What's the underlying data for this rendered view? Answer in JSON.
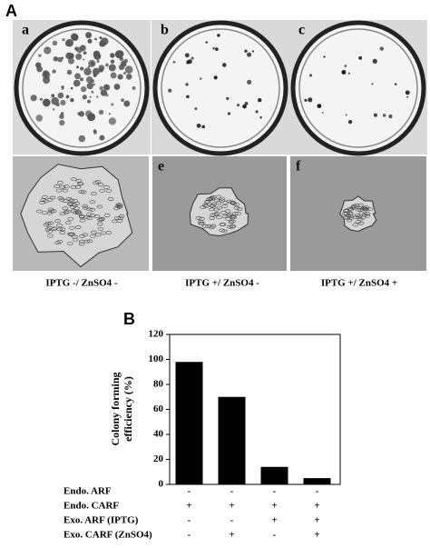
{
  "panel_a": {
    "label": "A",
    "dishes": [
      "a",
      "b",
      "c"
    ],
    "micrographs": [
      "e",
      "f"
    ],
    "captions": [
      "IPTG -/ ZnSO4 -",
      "IPTG +/ ZnSO4 -",
      "IPTG +/ ZnSO4 +"
    ]
  },
  "chart_data": {
    "type": "bar",
    "label": "B",
    "y_label": [
      "Colony forming",
      "efficiency (%)"
    ],
    "values": [
      98,
      70,
      14,
      5
    ],
    "color": "#000000",
    "ylim": [
      0,
      120
    ],
    "yticks": [
      0,
      20,
      40,
      60,
      80,
      100,
      120
    ],
    "conditions": [
      {
        "name": "Endo. ARF",
        "signs": [
          "-",
          "-",
          "-",
          "-"
        ]
      },
      {
        "name": "Endo. CARF",
        "signs": [
          "+",
          "+",
          "+",
          "+"
        ]
      },
      {
        "name": "Exo. ARF (IPTG)",
        "signs": [
          "-",
          "-",
          "+",
          "+"
        ]
      },
      {
        "name": "Exo. CARF (ZnSO4)",
        "signs": [
          "-",
          "+",
          "-",
          "+"
        ]
      }
    ]
  }
}
